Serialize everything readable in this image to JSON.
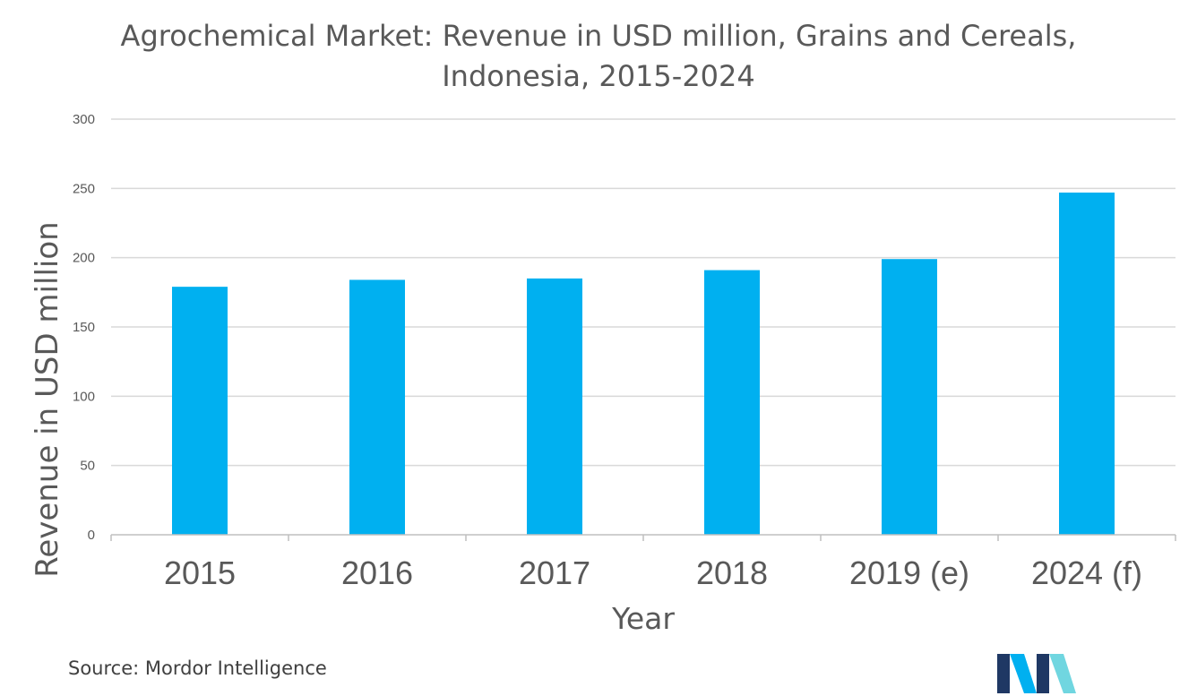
{
  "chart_data": {
    "type": "bar",
    "title_lines": [
      "Agrochemical Market: Revenue in USD million, Grains and Cereals,",
      "Indonesia, 2015-2024"
    ],
    "xlabel": "Year",
    "ylabel": "Revenue in USD million",
    "categories": [
      "2015",
      "2016",
      "2017",
      "2018",
      "2019 (e)",
      "2024  (f)"
    ],
    "values": [
      179,
      184,
      185,
      191,
      199,
      247
    ],
    "ylim": [
      0,
      300
    ],
    "yticks": [
      "0",
      "50",
      "100",
      "150",
      "200",
      "250",
      "300"
    ],
    "grid": true,
    "legend": "none",
    "bar_color": "#00B0F0",
    "grid_color": "#D9D9D9"
  },
  "source": "Source: Mordor Intelligence",
  "logo": {
    "name": "mordor-intelligence-logo",
    "colors": [
      "#1F3864",
      "#00B0F0",
      "#70D6E0"
    ]
  }
}
